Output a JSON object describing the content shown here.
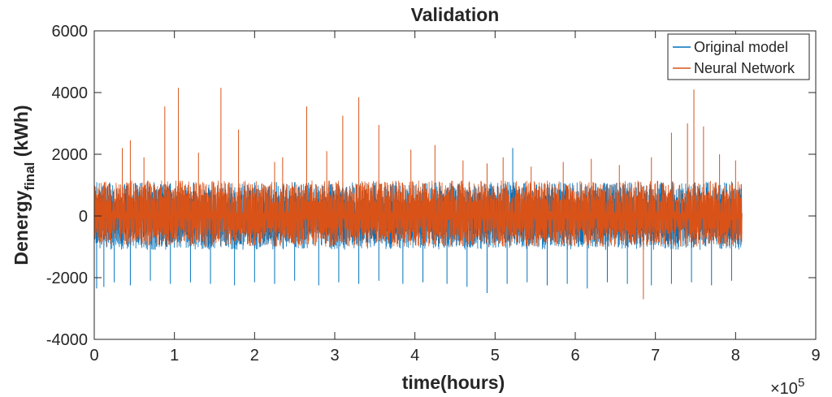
{
  "chart_data": {
    "type": "line",
    "title": "Validation",
    "xlabel": "time(hours)",
    "ylabel_main": "Denergy",
    "ylabel_sub": "final",
    "ylabel_unit": " (kWh)",
    "x_exponent_base": "×10",
    "x_exponent_power": "5",
    "xlim": [
      0,
      9
    ],
    "ylim": [
      -4000,
      6000
    ],
    "xticks": [
      "0",
      "1",
      "2",
      "3",
      "4",
      "5",
      "6",
      "7",
      "8",
      "9"
    ],
    "yticks": [
      "-4000",
      "-2000",
      "0",
      "2000",
      "4000",
      "6000"
    ],
    "data_x_range": [
      0,
      8.08
    ],
    "legend_position": "top-right",
    "grid": false,
    "series": [
      {
        "name": "Original model",
        "color": "#0072BD",
        "typical_range": [
          -1100,
          1100
        ],
        "peaks": [
          {
            "x": 0.03,
            "y": -2350
          },
          {
            "x": 0.12,
            "y": -2300
          },
          {
            "x": 0.25,
            "y": -2150
          },
          {
            "x": 0.45,
            "y": -2250
          },
          {
            "x": 0.7,
            "y": -2100
          },
          {
            "x": 0.95,
            "y": -2200
          },
          {
            "x": 1.2,
            "y": -2150
          },
          {
            "x": 1.45,
            "y": -2200
          },
          {
            "x": 1.75,
            "y": -2250
          },
          {
            "x": 2.0,
            "y": -2150
          },
          {
            "x": 2.25,
            "y": -2200
          },
          {
            "x": 2.5,
            "y": -2100
          },
          {
            "x": 2.8,
            "y": -2250
          },
          {
            "x": 3.05,
            "y": -2150
          },
          {
            "x": 3.3,
            "y": -2200
          },
          {
            "x": 3.55,
            "y": -2100
          },
          {
            "x": 3.85,
            "y": -2200
          },
          {
            "x": 4.1,
            "y": -2150
          },
          {
            "x": 4.4,
            "y": -2200
          },
          {
            "x": 4.65,
            "y": -2300
          },
          {
            "x": 4.9,
            "y": -2500
          },
          {
            "x": 5.22,
            "y": 2200
          },
          {
            "x": 5.15,
            "y": -2200
          },
          {
            "x": 5.4,
            "y": -2150
          },
          {
            "x": 5.65,
            "y": -2250
          },
          {
            "x": 5.9,
            "y": -2200
          },
          {
            "x": 6.15,
            "y": -2350
          },
          {
            "x": 6.4,
            "y": -2150
          },
          {
            "x": 6.65,
            "y": -2200
          },
          {
            "x": 6.95,
            "y": -2250
          },
          {
            "x": 7.2,
            "y": -2200
          },
          {
            "x": 7.45,
            "y": -2150
          },
          {
            "x": 7.7,
            "y": -2250
          },
          {
            "x": 7.95,
            "y": -2100
          }
        ]
      },
      {
        "name": "Neural Network",
        "color": "#D95319",
        "typical_range": [
          -1000,
          1150
        ],
        "peaks": [
          {
            "x": 0.35,
            "y": 2200
          },
          {
            "x": 0.45,
            "y": 2450
          },
          {
            "x": 0.62,
            "y": 1900
          },
          {
            "x": 0.88,
            "y": 3550
          },
          {
            "x": 1.05,
            "y": 4150
          },
          {
            "x": 1.3,
            "y": 2050
          },
          {
            "x": 1.58,
            "y": 4150
          },
          {
            "x": 1.8,
            "y": 2800
          },
          {
            "x": 2.25,
            "y": 1750
          },
          {
            "x": 2.35,
            "y": 1900
          },
          {
            "x": 2.65,
            "y": 3550
          },
          {
            "x": 2.9,
            "y": 2100
          },
          {
            "x": 3.1,
            "y": 3250
          },
          {
            "x": 3.3,
            "y": 3850
          },
          {
            "x": 3.55,
            "y": 2950
          },
          {
            "x": 3.95,
            "y": 2150
          },
          {
            "x": 4.25,
            "y": 2300
          },
          {
            "x": 4.6,
            "y": 1800
          },
          {
            "x": 4.9,
            "y": 1700
          },
          {
            "x": 5.1,
            "y": 1900
          },
          {
            "x": 5.45,
            "y": 1600
          },
          {
            "x": 5.85,
            "y": 1750
          },
          {
            "x": 6.2,
            "y": 1850
          },
          {
            "x": 6.55,
            "y": 1650
          },
          {
            "x": 6.85,
            "y": -2700
          },
          {
            "x": 6.95,
            "y": 1900
          },
          {
            "x": 7.2,
            "y": 2700
          },
          {
            "x": 7.4,
            "y": 3000
          },
          {
            "x": 7.48,
            "y": 4100
          },
          {
            "x": 7.6,
            "y": 2900
          },
          {
            "x": 7.8,
            "y": 2000
          },
          {
            "x": 8.0,
            "y": 1800
          }
        ]
      }
    ]
  }
}
